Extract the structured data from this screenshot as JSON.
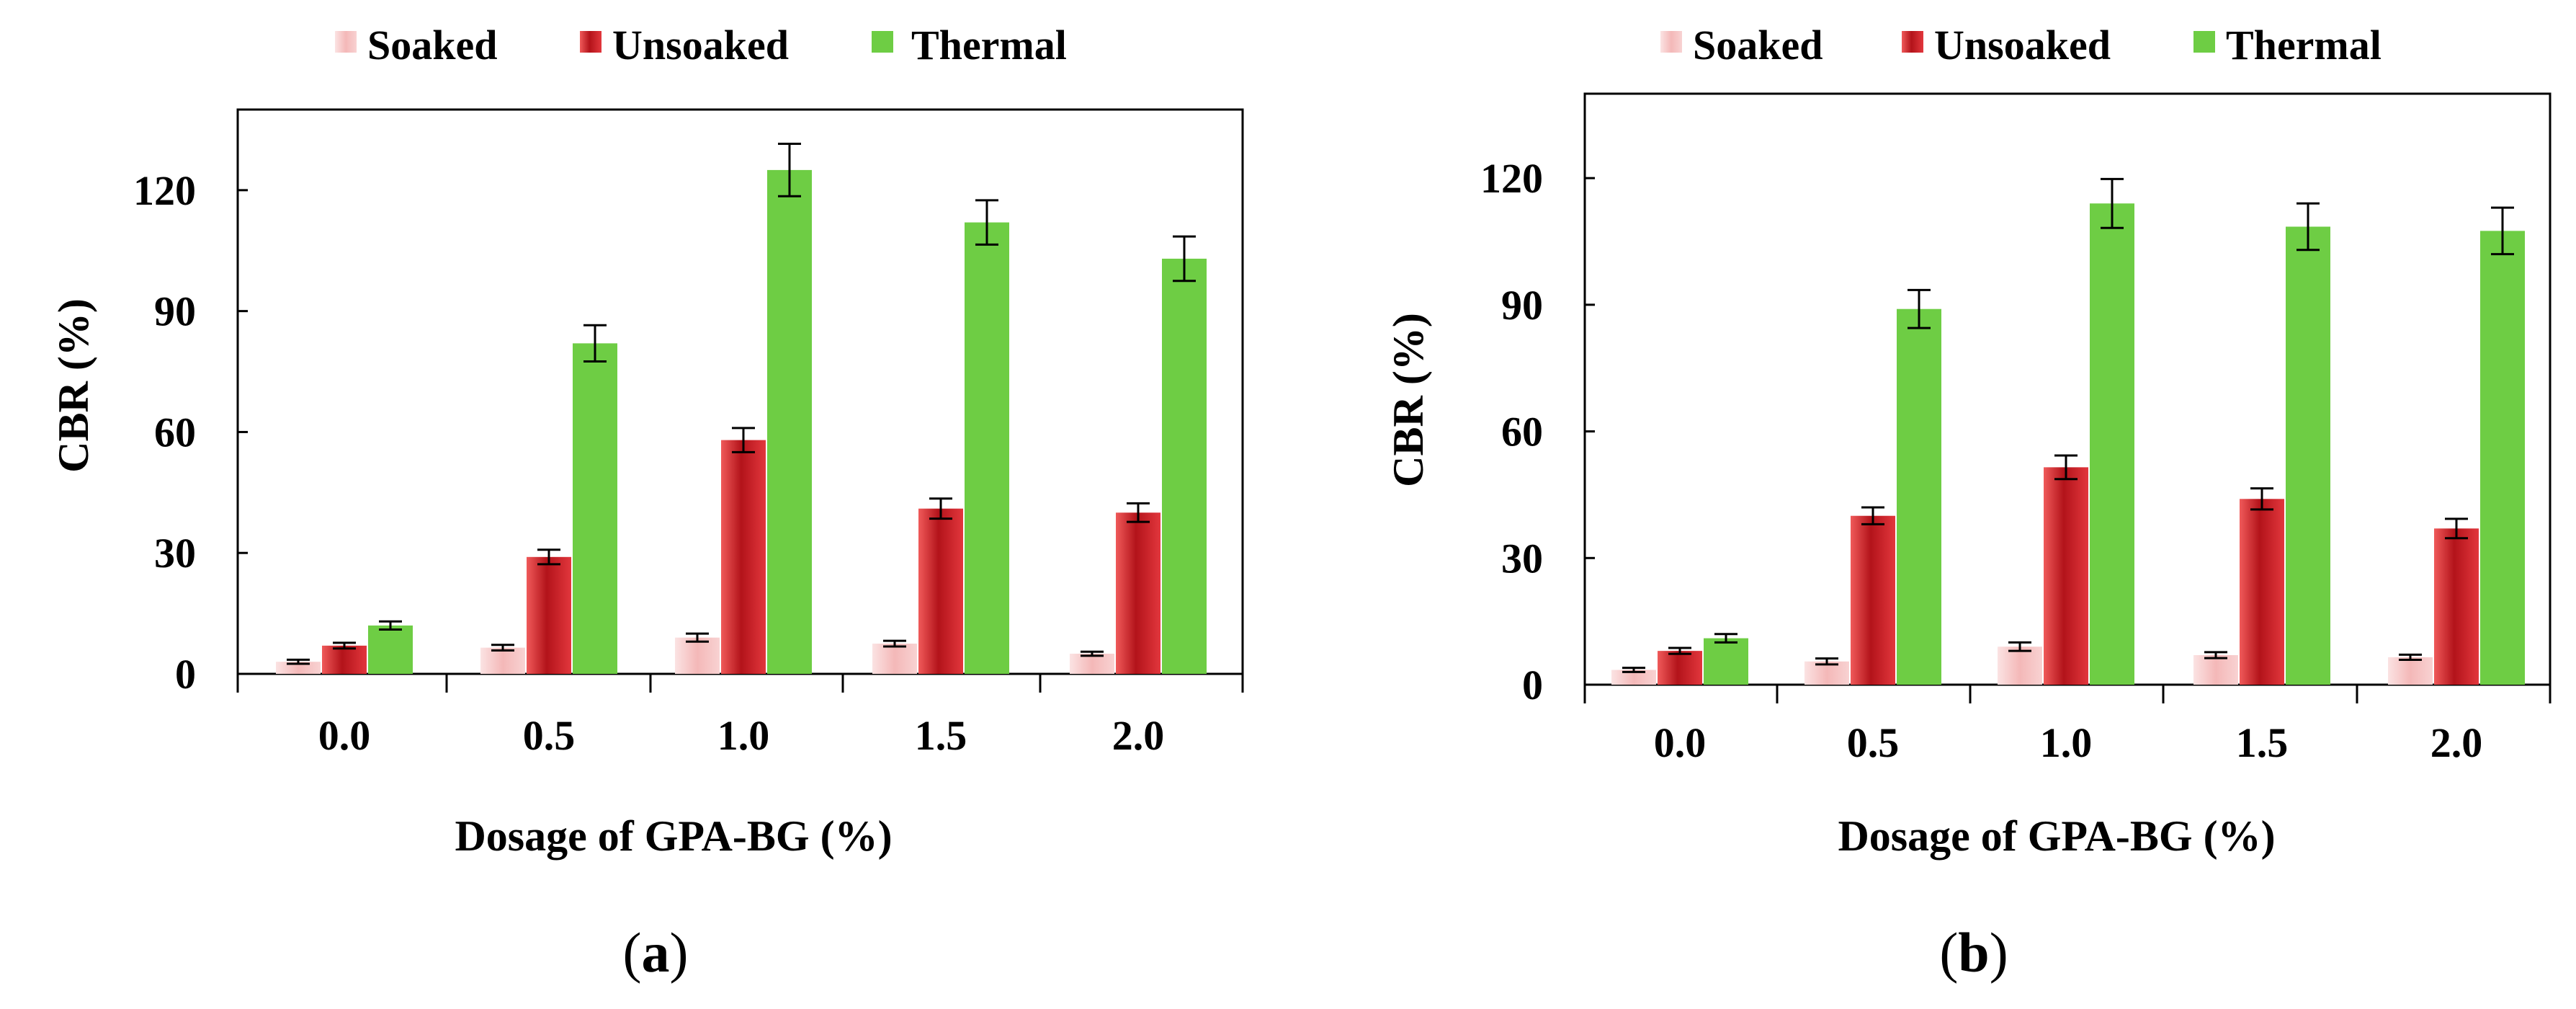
{
  "figure": {
    "caption_a_open": "(",
    "caption_a_letter": "a",
    "caption_a_close": ")",
    "caption_b_open": "(",
    "caption_b_letter": "b",
    "caption_b_close": ")"
  },
  "colors": {
    "soaked": "#f7c3c3",
    "unsoaked": "#d8262c",
    "thermal": "#6ecd44",
    "axis": "#000000"
  },
  "chart_data": [
    {
      "type": "bar",
      "panel": "a",
      "categories": [
        "0.0",
        "0.5",
        "1.0",
        "1.5",
        "2.0"
      ],
      "series": [
        {
          "name": "Soaked",
          "color_key": "soaked",
          "values": [
            3,
            6.5,
            9,
            7.5,
            5
          ],
          "errors": [
            0.5,
            0.7,
            1,
            0.7,
            0.5
          ]
        },
        {
          "name": "Unsoaked",
          "color_key": "unsoaked",
          "values": [
            7,
            29,
            58,
            41,
            40
          ],
          "errors": [
            0.7,
            1.8,
            3,
            2.5,
            2.3
          ]
        },
        {
          "name": "Thermal",
          "color_key": "thermal",
          "values": [
            12,
            82,
            125,
            112,
            103
          ],
          "errors": [
            1,
            4.5,
            6.5,
            5.5,
            5.5
          ]
        }
      ],
      "title": "",
      "xlabel": "Dosage of GPA-BG (%)",
      "ylabel": "CBR (%)",
      "ylim": [
        0,
        140
      ],
      "yticks": [
        0,
        30,
        60,
        90,
        120
      ],
      "ytick_labels": [
        "0",
        "30",
        "60",
        "90",
        "120"
      ],
      "legend_position": "top-center",
      "grid": false
    },
    {
      "type": "bar",
      "panel": "b",
      "categories": [
        "0.0",
        "0.5",
        "1.0",
        "1.5",
        "2.0"
      ],
      "series": [
        {
          "name": "Soaked",
          "color_key": "soaked",
          "values": [
            3.5,
            5.5,
            9,
            7,
            6.5
          ],
          "errors": [
            0.5,
            0.7,
            1,
            0.7,
            0.6
          ]
        },
        {
          "name": "Unsoaked",
          "color_key": "unsoaked",
          "values": [
            8,
            40,
            51.5,
            44,
            37
          ],
          "errors": [
            0.7,
            2,
            2.8,
            2.5,
            2.3
          ]
        },
        {
          "name": "Thermal",
          "color_key": "thermal",
          "values": [
            11,
            89,
            114,
            108.5,
            107.5
          ],
          "errors": [
            1,
            4.5,
            5.8,
            5.5,
            5.5
          ]
        }
      ],
      "title": "",
      "xlabel": "Dosage of GPA-BG (%)",
      "ylabel": "CBR (%)",
      "ylim": [
        0,
        140
      ],
      "yticks": [
        0,
        30,
        60,
        90,
        120
      ],
      "ytick_labels": [
        "0",
        "30",
        "60",
        "90",
        "120"
      ],
      "legend_position": "top-center",
      "grid": false
    }
  ]
}
